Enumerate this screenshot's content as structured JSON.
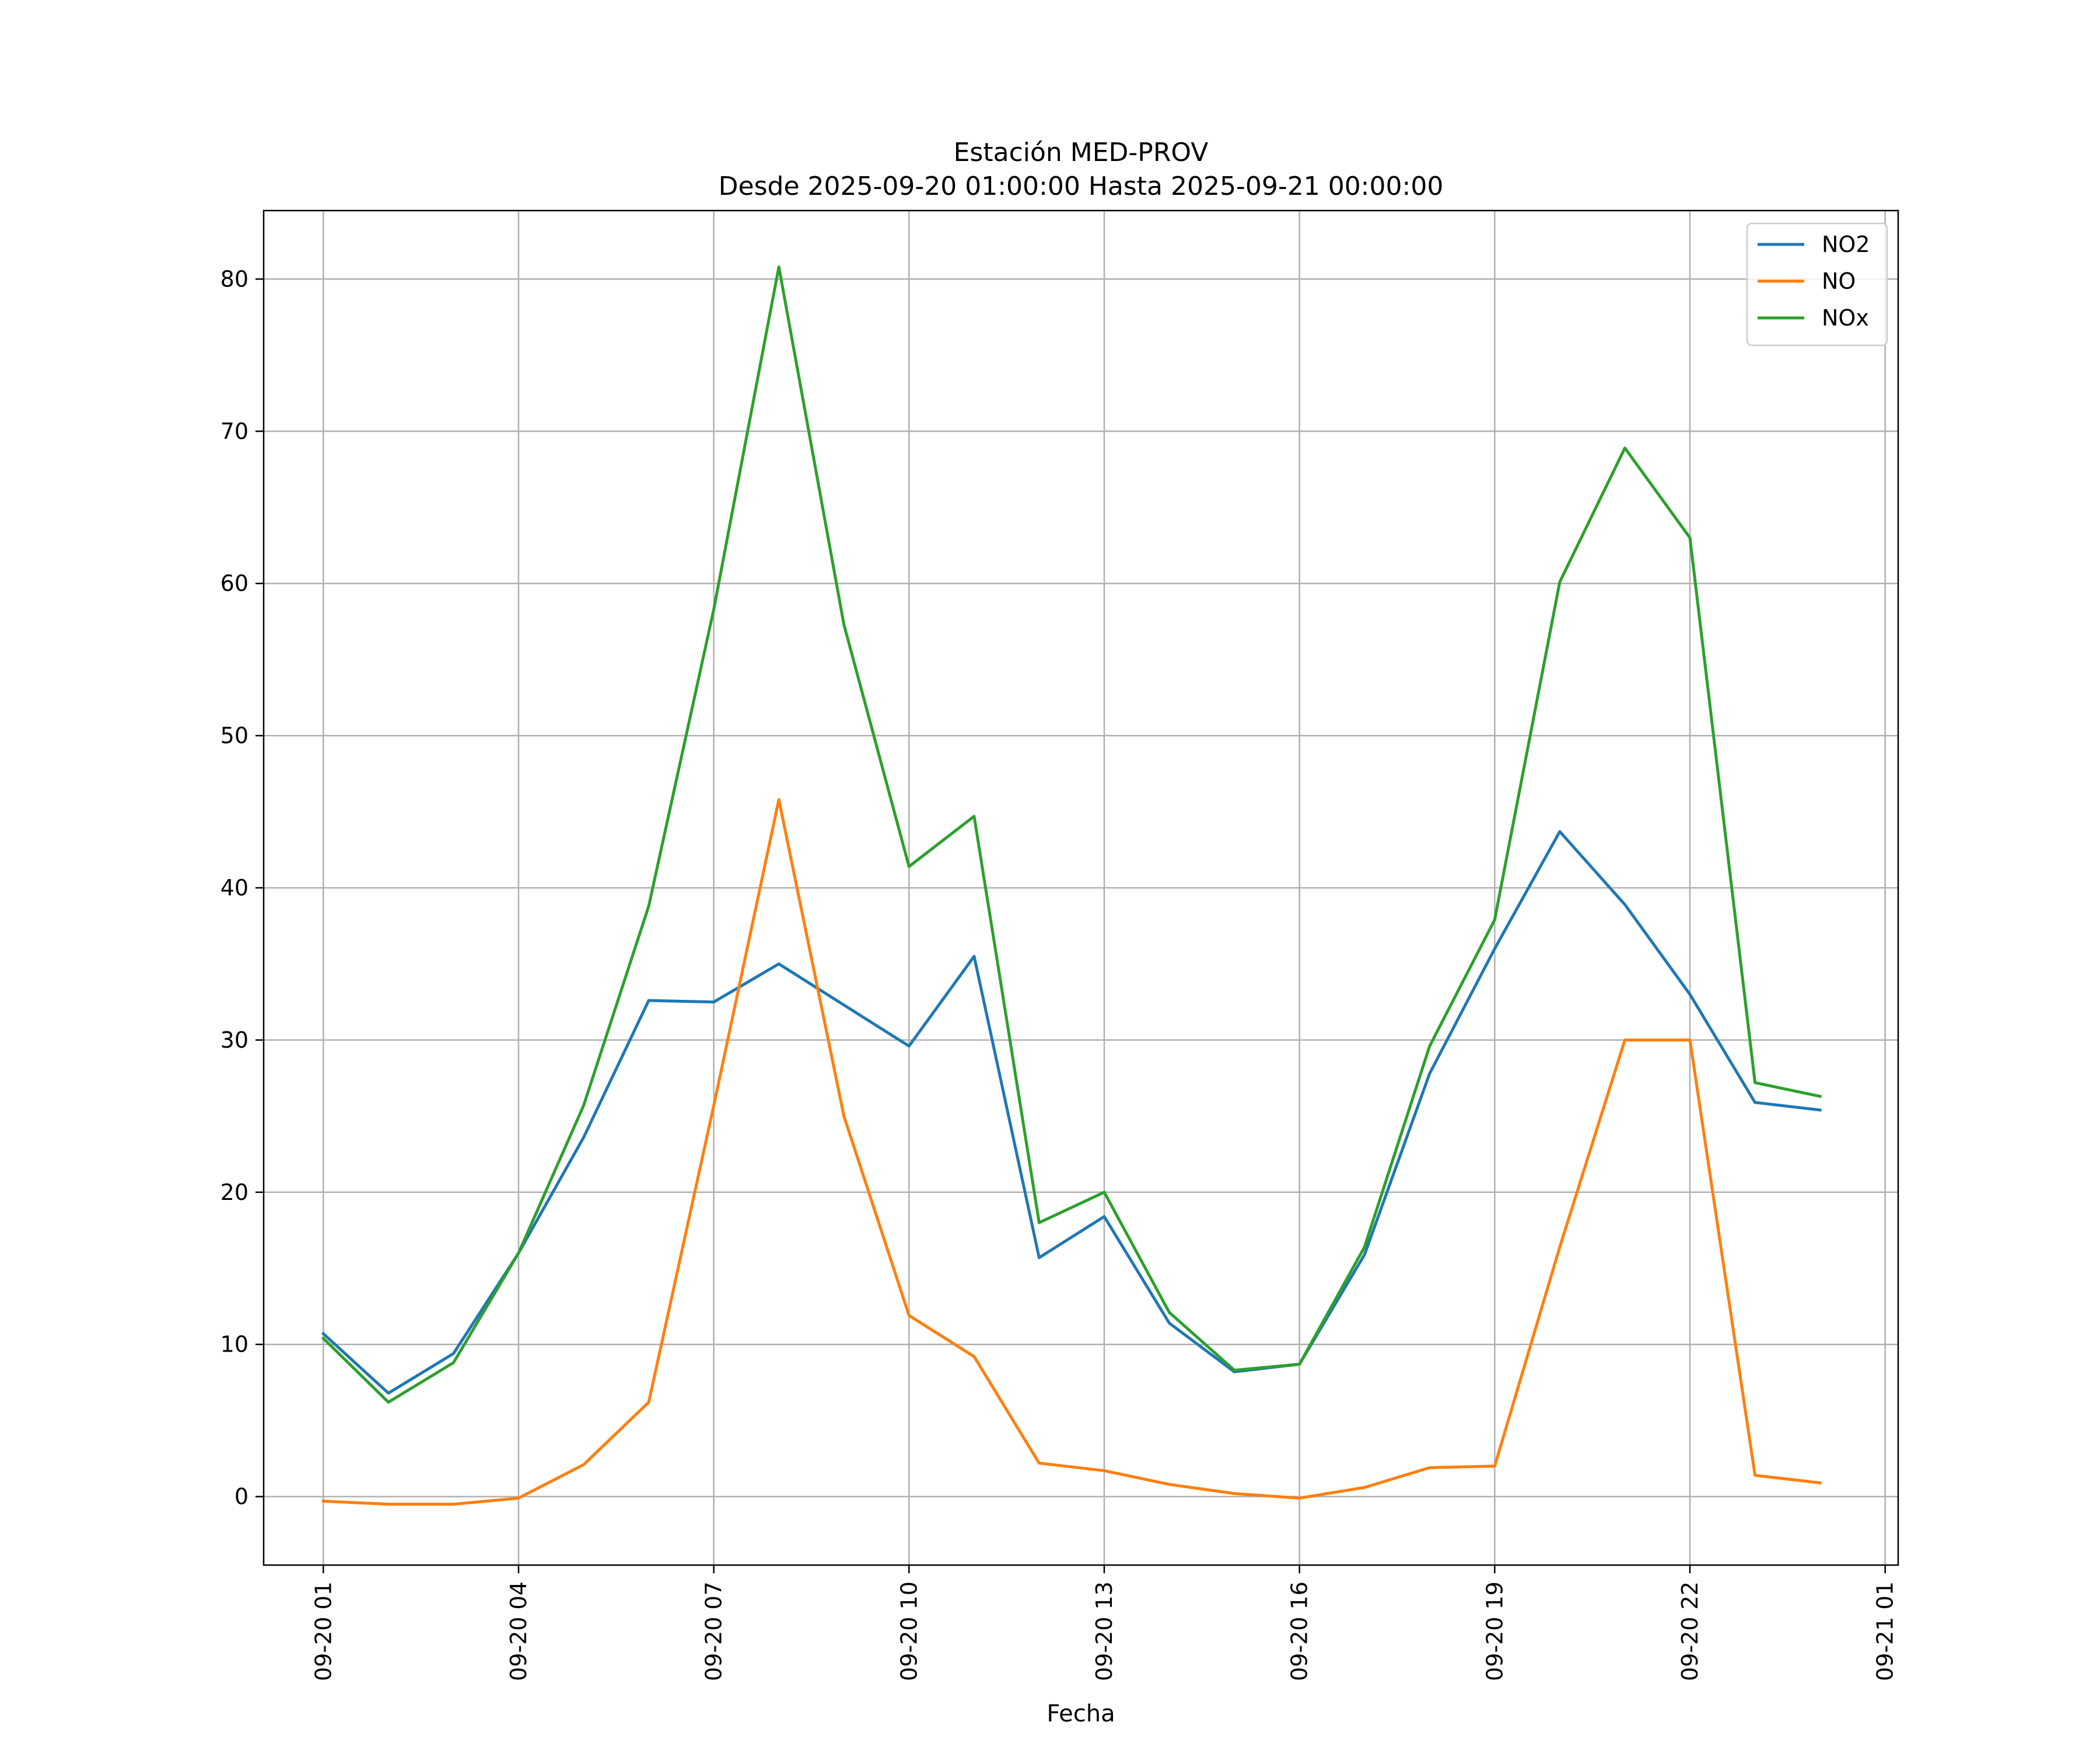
{
  "chart_data": {
    "type": "line",
    "title": "Estación MED-PROV",
    "subtitle": "Desde 2025-09-20 01:00:00 Hasta 2025-09-21 00:00:00",
    "xlabel": "Fecha",
    "ylabel": "",
    "x": [
      "2025-09-20 01:00",
      "2025-09-20 02:00",
      "2025-09-20 03:00",
      "2025-09-20 04:00",
      "2025-09-20 05:00",
      "2025-09-20 06:00",
      "2025-09-20 07:00",
      "2025-09-20 08:00",
      "2025-09-20 09:00",
      "2025-09-20 10:00",
      "2025-09-20 11:00",
      "2025-09-20 12:00",
      "2025-09-20 13:00",
      "2025-09-20 14:00",
      "2025-09-20 15:00",
      "2025-09-20 16:00",
      "2025-09-20 17:00",
      "2025-09-20 18:00",
      "2025-09-20 19:00",
      "2025-09-20 20:00",
      "2025-09-20 21:00",
      "2025-09-20 22:00",
      "2025-09-20 23:00",
      "2025-09-21 00:00"
    ],
    "xlim": [
      "2025-09-20 00:05",
      "2025-09-21 01:12"
    ],
    "ylim": [
      -4.5,
      84.5
    ],
    "xticks": [
      {
        "label": "09-20 01",
        "x": "2025-09-20 01:00"
      },
      {
        "label": "09-20 04",
        "x": "2025-09-20 04:00"
      },
      {
        "label": "09-20 07",
        "x": "2025-09-20 07:00"
      },
      {
        "label": "09-20 10",
        "x": "2025-09-20 10:00"
      },
      {
        "label": "09-20 13",
        "x": "2025-09-20 13:00"
      },
      {
        "label": "09-20 16",
        "x": "2025-09-20 16:00"
      },
      {
        "label": "09-20 19",
        "x": "2025-09-20 19:00"
      },
      {
        "label": "09-20 22",
        "x": "2025-09-20 22:00"
      },
      {
        "label": "09-21 01",
        "x": "2025-09-21 01:00"
      }
    ],
    "yticks": [
      0,
      10,
      20,
      30,
      40,
      50,
      60,
      70,
      80
    ],
    "grid": true,
    "legend_position": "top-right",
    "series": [
      {
        "name": "NO2",
        "color": "#1f77b4",
        "values": [
          10.7,
          6.8,
          9.4,
          16.0,
          23.6,
          32.6,
          32.5,
          35.0,
          32.3,
          29.6,
          35.5,
          15.7,
          18.4,
          11.4,
          8.2,
          8.7,
          15.9,
          27.8,
          36.0,
          43.7,
          38.9,
          33.0,
          25.9,
          25.4
        ]
      },
      {
        "name": "NO",
        "color": "#ff7f0e",
        "values": [
          -0.3,
          -0.5,
          -0.5,
          -0.1,
          2.1,
          6.2,
          25.7,
          45.8,
          25.0,
          11.9,
          9.2,
          2.2,
          1.7,
          0.8,
          0.2,
          -0.1,
          0.6,
          1.9,
          2.0,
          16.4,
          30.0,
          30.0,
          1.4,
          0.9
        ]
      },
      {
        "name": "NOx",
        "color": "#2ca02c",
        "values": [
          10.4,
          6.2,
          8.8,
          16.0,
          25.7,
          38.8,
          58.3,
          80.8,
          57.3,
          41.4,
          44.7,
          18.0,
          20.0,
          12.1,
          8.3,
          8.7,
          16.4,
          29.6,
          37.9,
          60.1,
          68.9,
          63.0,
          27.2,
          26.3
        ]
      }
    ]
  }
}
